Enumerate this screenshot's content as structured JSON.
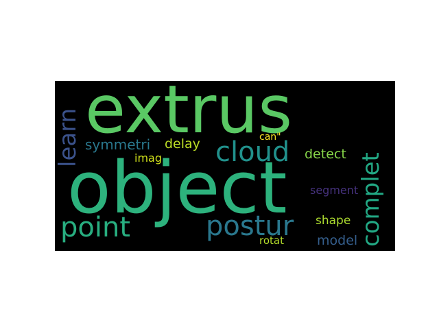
{
  "wordcloud": {
    "background": "#000000",
    "words": [
      {
        "text": "extrus",
        "color": "#5ac864"
      },
      {
        "text": "object",
        "color": "#2db27d"
      },
      {
        "text": "cloud",
        "color": "#21918c"
      },
      {
        "text": "postur",
        "color": "#2a788e"
      },
      {
        "text": "point",
        "color": "#28ae80"
      },
      {
        "text": "complet",
        "color": "#22a884"
      },
      {
        "text": "learn",
        "color": "#3b528b"
      },
      {
        "text": "symmetri",
        "color": "#2a788e"
      },
      {
        "text": "delay",
        "color": "#bddf26"
      },
      {
        "text": "detect",
        "color": "#86d549"
      },
      {
        "text": "imag",
        "color": "#d2e21b"
      },
      {
        "text": "can\"",
        "color": "#fde725"
      },
      {
        "text": "segment",
        "color": "#46327e"
      },
      {
        "text": "shape",
        "color": "#addc30"
      },
      {
        "text": "model",
        "color": "#355f8d"
      },
      {
        "text": "rotat",
        "color": "#b5de2b"
      }
    ]
  }
}
